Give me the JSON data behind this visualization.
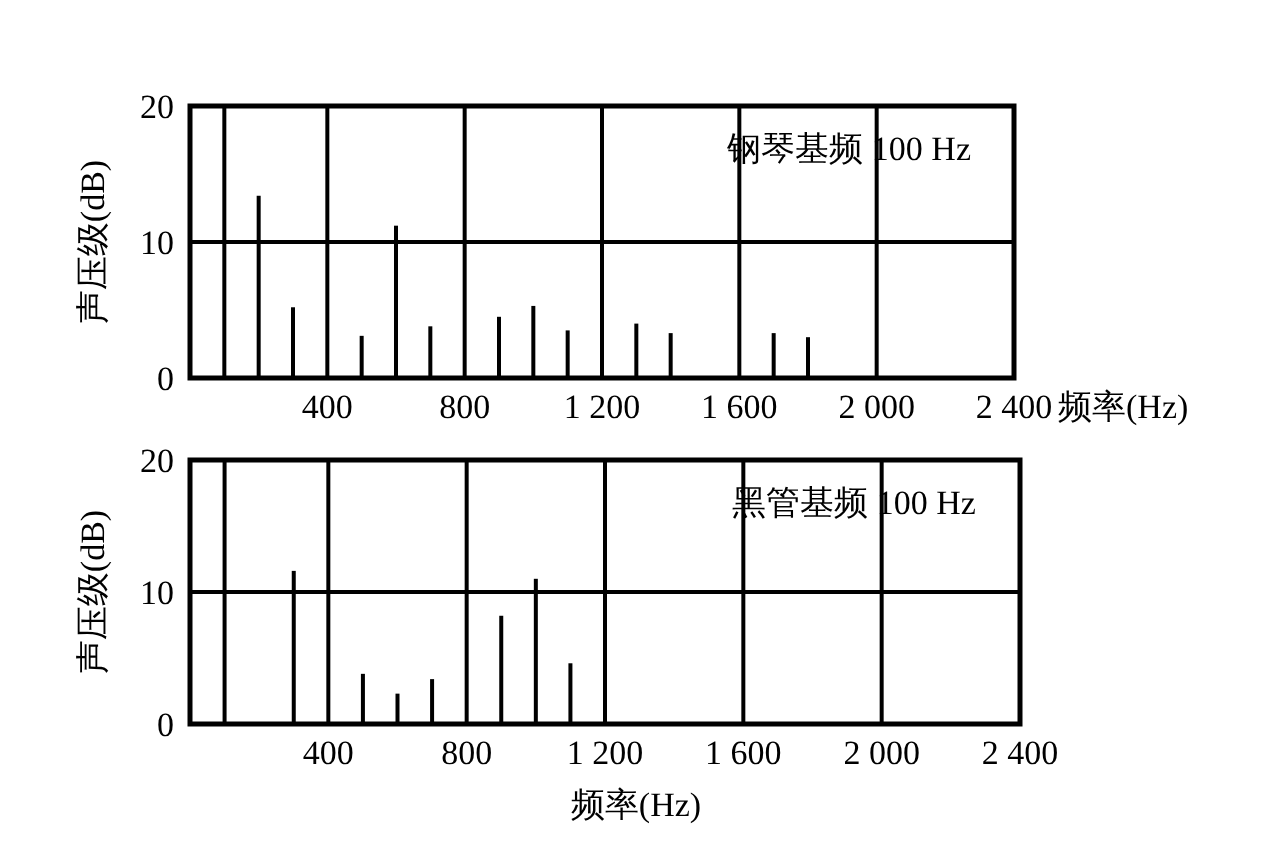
{
  "chart_data": [
    {
      "type": "bar",
      "title": "钢琴基频 100 Hz",
      "xlabel": "频率(Hz)",
      "ylabel": "声压级(dB)",
      "x": [
        200,
        300,
        500,
        600,
        700,
        900,
        1000,
        1100,
        1300,
        1400,
        1700,
        1800
      ],
      "series": [
        {
          "color": "#000000",
          "values": [
            13.4,
            5.2,
            3.1,
            11.2,
            3.8,
            4.5,
            5.3,
            3.5,
            4.0,
            3.3,
            3.3,
            3.0
          ]
        }
      ],
      "xlim": [
        0,
        2400
      ],
      "xticks": [
        {
          "value": 400,
          "label": "400"
        },
        {
          "value": 800,
          "label": "800"
        },
        {
          "value": 1200,
          "label": "1 200"
        },
        {
          "value": 1600,
          "label": "1 600"
        },
        {
          "value": 2000,
          "label": "2 000"
        },
        {
          "value": 2400,
          "label": "2 400"
        }
      ],
      "ylim": [
        0,
        20
      ],
      "yticks": [
        0,
        10,
        20
      ],
      "grid": "x",
      "ref_lines": [
        {
          "axis": "x",
          "value": 100,
          "color": "#000000"
        },
        {
          "axis": "y",
          "value": 10,
          "color": "#000000"
        }
      ]
    },
    {
      "type": "bar",
      "title": "黑管基频 100 Hz",
      "xlabel": "频率(Hz)",
      "ylabel": "声压级(dB)",
      "x": [
        300,
        500,
        600,
        700,
        900,
        1000,
        1100
      ],
      "series": [
        {
          "color": "#000000",
          "values": [
            11.6,
            3.8,
            2.3,
            3.4,
            8.2,
            11.0,
            4.6
          ]
        }
      ],
      "xlim": [
        0,
        2400
      ],
      "xticks": [
        {
          "value": 400,
          "label": "400"
        },
        {
          "value": 800,
          "label": "800"
        },
        {
          "value": 1200,
          "label": "1 200"
        },
        {
          "value": 1600,
          "label": "1 600"
        },
        {
          "value": 2000,
          "label": "2 000"
        },
        {
          "value": 2400,
          "label": "2 400"
        }
      ],
      "ylim": [
        0,
        20
      ],
      "yticks": [
        0,
        10,
        20
      ],
      "grid": "x",
      "ref_lines": [
        {
          "axis": "x",
          "value": 100,
          "color": "#000000"
        },
        {
          "axis": "y",
          "value": 10,
          "color": "#000000"
        }
      ]
    }
  ]
}
